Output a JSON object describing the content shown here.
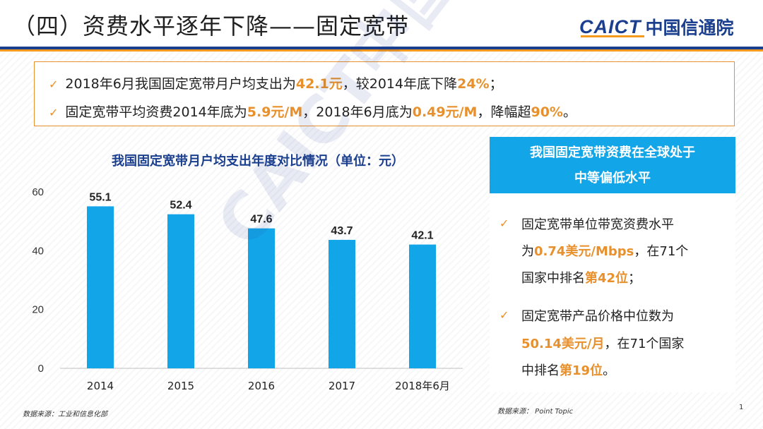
{
  "title": "（四）资费水平逐年下降——固定宽带",
  "logo": {
    "en": "CAICT",
    "cn": "中国信通院"
  },
  "summary": [
    {
      "parts": [
        "2018年6月我国固定宽带月户均支出为",
        "42.1元",
        "，较2014年底下降",
        "24%",
        "；"
      ]
    },
    {
      "parts": [
        "固定宽带平均资费2014年底为",
        "5.9元/M",
        "，2018年6月底为",
        "0.49元/M",
        "，降幅超",
        "90%",
        "。"
      ]
    }
  ],
  "chart_data": {
    "type": "bar",
    "title": "我国固定宽带月户均支出年度对比情况（单位：元）",
    "categories": [
      "2014",
      "2015",
      "2016",
      "2017",
      "2018年6月"
    ],
    "values": [
      55.1,
      52.4,
      47.6,
      43.7,
      42.1
    ],
    "data_labels": [
      "55.1",
      "52.4",
      "47.6",
      "43.7",
      "42.1"
    ],
    "ylim": [
      0,
      60
    ],
    "yticks": [
      0,
      20,
      40,
      60
    ],
    "ytick_labels": [
      "0",
      "20",
      "40",
      "60"
    ],
    "bar_color": "#12a5e8",
    "grid": false,
    "xlabel": "",
    "ylabel": ""
  },
  "source_left": "数据来源：工业和信息化部",
  "panel": {
    "heading_line1": "我国固定宽带资费在全球处于",
    "heading_line2": "中等偏低水平",
    "item1": {
      "l1": "固定宽带单位带宽资费水平",
      "l2a": "为",
      "l2b": "0.74美元/Mbps",
      "l2c": "，在71个",
      "l3a": "国家中排名",
      "l3b": "第42位",
      "l3c": "；"
    },
    "item2": {
      "l1": "固定宽带产品价格中位数为",
      "l2a": "50.14美元/月",
      "l2b": "，在71个国家",
      "l3a": "中排名",
      "l3b": "第19位",
      "l3c": "。"
    }
  },
  "source_right": "数据来源： Point Topic",
  "page_number": "1",
  "watermark": "CAICT中国信通院",
  "colors": {
    "accent": "#e8912c",
    "brand_blue": "#1b3f8f",
    "panel_blue": "#12a5e8"
  },
  "icons": {
    "bullet": "checkmark-icon"
  }
}
